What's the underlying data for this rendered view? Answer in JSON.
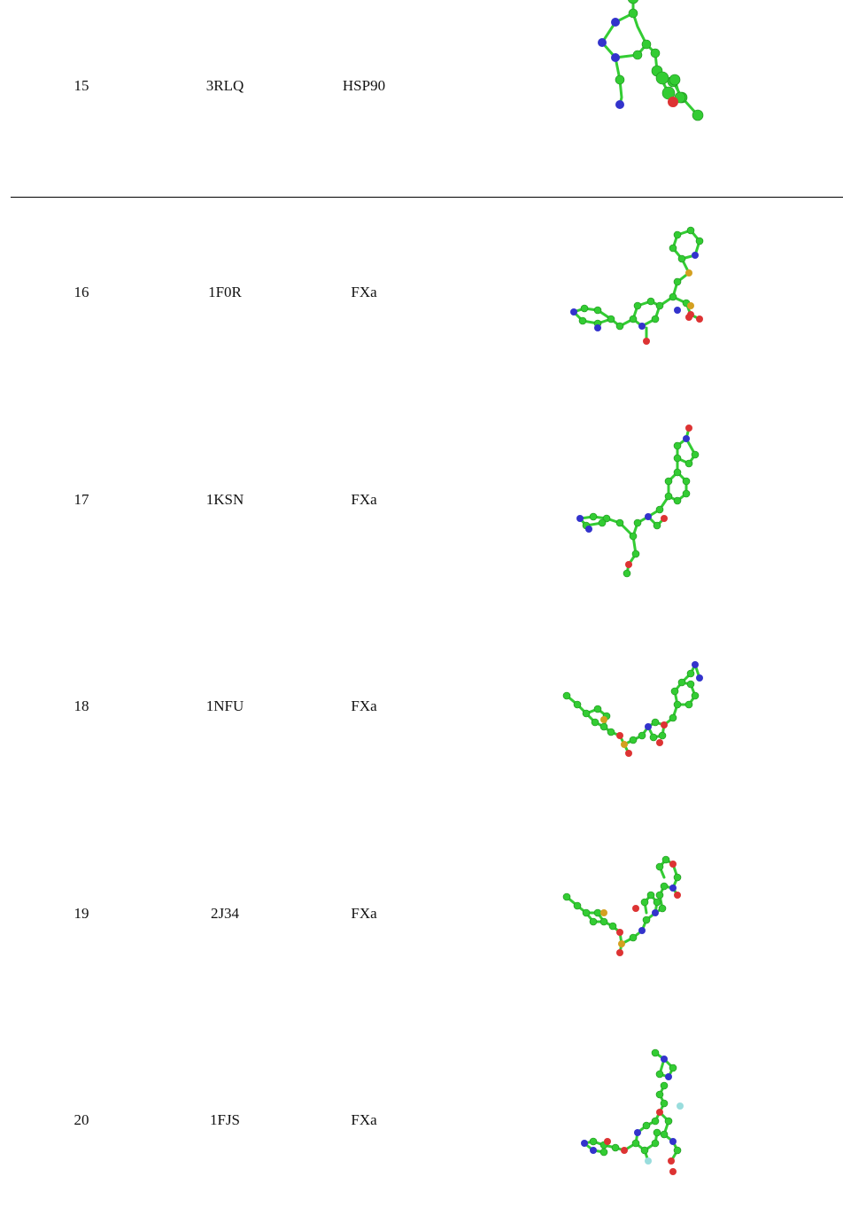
{
  "table": {
    "rows": [
      {
        "id": "15",
        "pdb": "3RLQ",
        "target": "HSP90"
      },
      {
        "id": "16",
        "pdb": "1F0R",
        "target": "FXa"
      },
      {
        "id": "17",
        "pdb": "1KSN",
        "target": "FXa"
      },
      {
        "id": "18",
        "pdb": "1NFU",
        "target": "FXa"
      },
      {
        "id": "19",
        "pdb": "2J34",
        "target": "FXa"
      },
      {
        "id": "20",
        "pdb": "1FJS",
        "target": "FXa"
      }
    ]
  },
  "colors": {
    "carbon": "#33cc33",
    "nitrogen": "#3333cc",
    "oxygen": "#dd3333",
    "sulfur": "#d4a020",
    "fluorine": "#99dddd"
  },
  "icons": {
    "structure": "ball-and-stick-ligand-structure"
  }
}
